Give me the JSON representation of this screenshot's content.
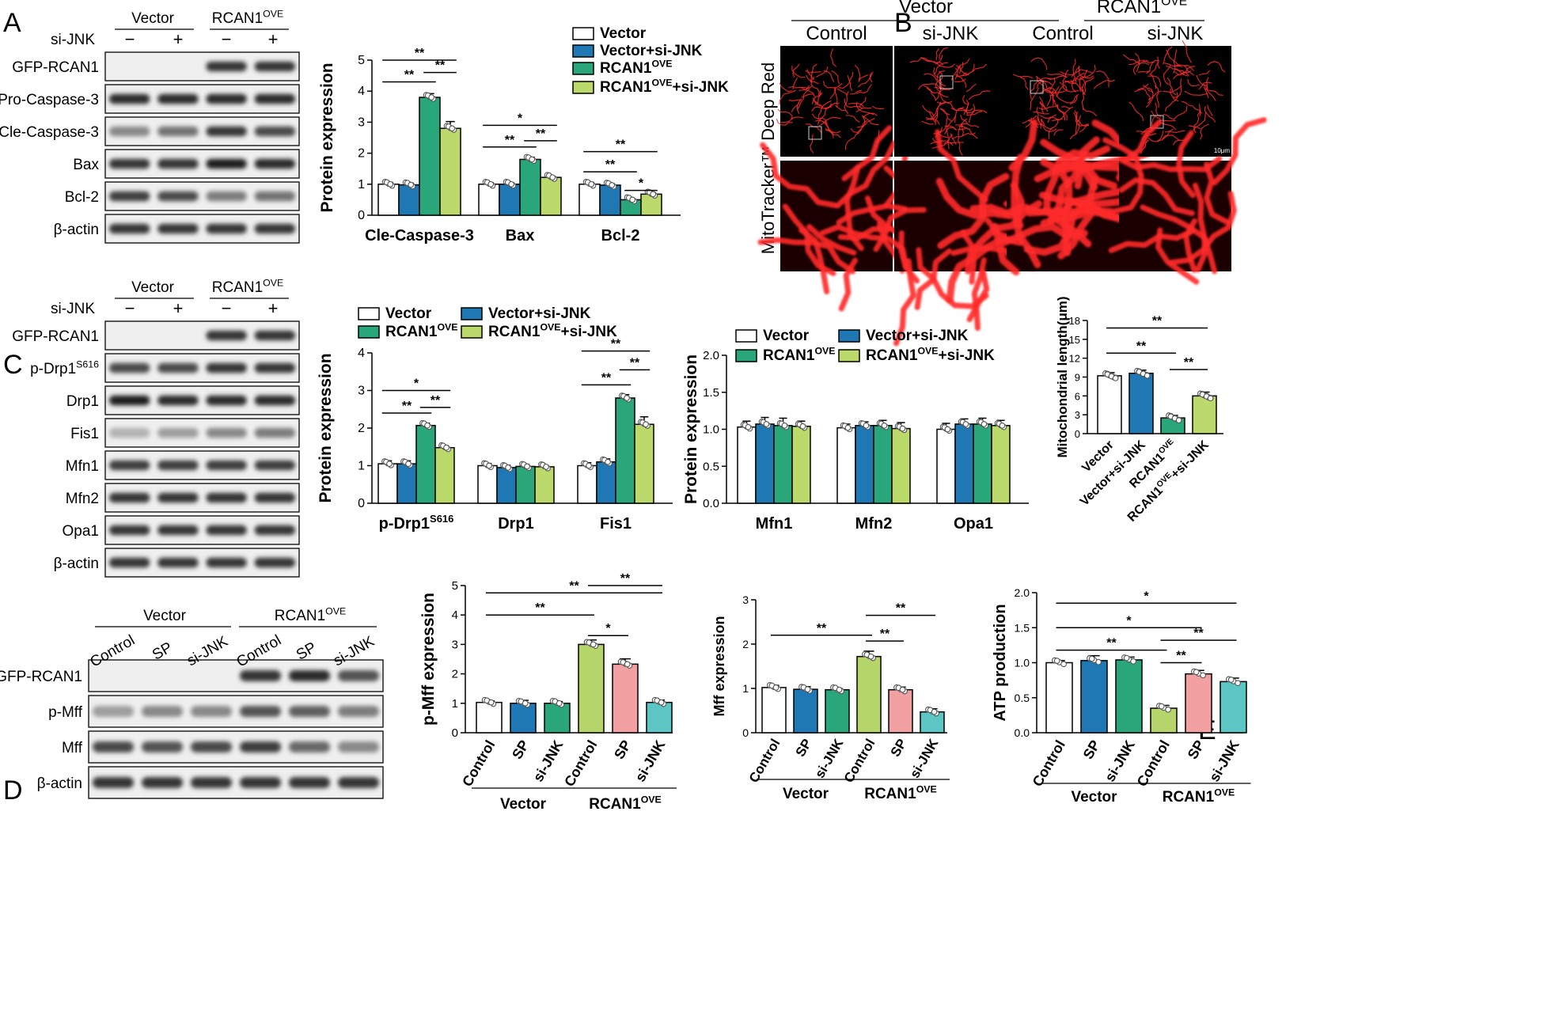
{
  "colors": {
    "vector": "#ffffff",
    "vector_sijnk": "#1f78b4",
    "rcan1": "#2aa77a",
    "rcan1_sijnk": "#bcd96b",
    "d_control_rcan": "#b5d46a",
    "d_sp_rcan": "#f2a0a2",
    "d_sijnk_rcan": "#5cc6c4",
    "d_sp_vec": "#1f78b4",
    "d_sijnk_vec": "#2aa77a"
  },
  "panels": {
    "A": "A",
    "B": "B",
    "C": "C",
    "D": "D",
    "E": "E"
  },
  "common": {
    "vector": "Vector",
    "rcan1_base": "RCAN1",
    "ove": "OVE",
    "sijnk": "si-JNK",
    "minus": "−",
    "plus": "+",
    "control": "Control",
    "sp": "SP",
    "sig2": "**",
    "sig1": "*"
  },
  "blotA": {
    "rows": [
      "GFP-RCAN1",
      "Pro-Caspase-3",
      "Cle-Caspase-3",
      "Bax",
      "Bcl-2",
      "β-actin"
    ]
  },
  "blotC": {
    "rows": [
      "GFP-RCAN1",
      "p-Drp1",
      "Drp1",
      "Fis1",
      "Mfn1",
      "Mfn2",
      "Opa1",
      "β-actin"
    ],
    "pdrp1_sup": "S616"
  },
  "blotD": {
    "rows": [
      "GFP-RCAN1",
      "p-Mff",
      "Mff",
      "β-actin"
    ]
  },
  "microscopy": {
    "ylabel": "MitoTracker™ Deep Red",
    "scale": "10μm"
  },
  "legend": {
    "vector": "Vector",
    "vector_sijnk": "Vector+si-JNK",
    "rcan1": "RCAN1",
    "rcan1_sijnk_suffix": "+si-JNK"
  },
  "chart_data": [
    {
      "id": "A",
      "type": "bar",
      "ylabel": "Protein expression",
      "ylim": [
        0,
        5
      ],
      "yticks": [
        0,
        1,
        2,
        3,
        4,
        5
      ],
      "categories": [
        "Cle-Caspase-3",
        "Bax",
        "Bcl-2"
      ],
      "series": [
        {
          "name": "Vector",
          "values": [
            1.0,
            1.0,
            1.0
          ],
          "errors": [
            0.06,
            0.05,
            0.06
          ]
        },
        {
          "name": "Vector+si-JNK",
          "values": [
            0.98,
            1.0,
            0.97
          ],
          "errors": [
            0.06,
            0.05,
            0.05
          ]
        },
        {
          "name": "RCAN1OVE",
          "values": [
            3.8,
            1.8,
            0.5
          ],
          "errors": [
            0.12,
            0.07,
            0.04
          ]
        },
        {
          "name": "RCAN1OVE+si-JNK",
          "values": [
            2.8,
            1.22,
            0.68
          ],
          "errors": [
            0.22,
            0.04,
            0.05
          ]
        }
      ],
      "significance": [
        {
          "group": 0,
          "from": 0,
          "to": 2,
          "label": "**",
          "y": 4.3
        },
        {
          "group": 0,
          "from": 2,
          "to": 3,
          "label": "**",
          "y": 4.6
        },
        {
          "group": 0,
          "from": 0,
          "to": 3,
          "label": "**",
          "y": 5.0
        },
        {
          "group": 1,
          "from": 0,
          "to": 2,
          "label": "**",
          "y": 2.2
        },
        {
          "group": 1,
          "from": 2,
          "to": 3,
          "label": "**",
          "y": 2.4
        },
        {
          "group": 1,
          "from": 0,
          "to": 3,
          "label": "*",
          "y": 2.9
        },
        {
          "group": 2,
          "from": 0,
          "to": 2,
          "label": "**",
          "y": 1.4
        },
        {
          "group": 2,
          "from": 2,
          "to": 3,
          "label": "*",
          "y": 0.8
        },
        {
          "group": 2,
          "from": 0,
          "to": 3,
          "label": "**",
          "y": 2.05
        }
      ]
    },
    {
      "id": "C1",
      "type": "bar",
      "ylabel": "Protein expression",
      "ylim": [
        0,
        4
      ],
      "yticks": [
        0,
        1,
        2,
        3,
        4
      ],
      "categories": [
        "p-Drp1S616",
        "Drp1",
        "Fis1"
      ],
      "series": [
        {
          "name": "Vector",
          "values": [
            1.05,
            1.0,
            1.0
          ],
          "errors": [
            0.08,
            0.06,
            0.08
          ]
        },
        {
          "name": "Vector+si-JNK",
          "values": [
            1.05,
            0.95,
            1.1
          ],
          "errors": [
            0.08,
            0.06,
            0.08
          ]
        },
        {
          "name": "RCAN1OVE",
          "values": [
            2.07,
            0.98,
            2.8
          ],
          "errors": [
            0.06,
            0.05,
            0.09
          ]
        },
        {
          "name": "RCAN1OVE+si-JNK",
          "values": [
            1.48,
            0.97,
            2.1
          ],
          "errors": [
            0.05,
            0.04,
            0.2
          ]
        }
      ],
      "significance": [
        {
          "group": 0,
          "from": 0,
          "to": 2,
          "label": "**",
          "y": 2.4
        },
        {
          "group": 0,
          "from": 2,
          "to": 3,
          "label": "**",
          "y": 2.55
        },
        {
          "group": 0,
          "from": 0,
          "to": 3,
          "label": "*",
          "y": 3.0
        },
        {
          "group": 2,
          "from": 0,
          "to": 2,
          "label": "**",
          "y": 3.15
        },
        {
          "group": 2,
          "from": 2,
          "to": 3,
          "label": "**",
          "y": 3.55
        },
        {
          "group": 2,
          "from": 0,
          "to": 3,
          "label": "**",
          "y": 4.05
        }
      ]
    },
    {
      "id": "C2",
      "type": "bar",
      "ylabel": "Protein expression",
      "ylim": [
        0,
        2.0
      ],
      "yticks": [
        0.0,
        0.5,
        1.0,
        1.5,
        2.0
      ],
      "categories": [
        "Mfn1",
        "Mfn2",
        "Opa1"
      ],
      "series": [
        {
          "name": "Vector",
          "values": [
            1.03,
            1.02,
            1.0
          ],
          "errors": [
            0.08,
            0.05,
            0.08
          ]
        },
        {
          "name": "Vector+si-JNK",
          "values": [
            1.07,
            1.05,
            1.07
          ],
          "errors": [
            0.09,
            0.05,
            0.07
          ]
        },
        {
          "name": "RCAN1OVE",
          "values": [
            1.05,
            1.05,
            1.07
          ],
          "errors": [
            0.1,
            0.07,
            0.08
          ]
        },
        {
          "name": "RCAN1OVE+si-JNK",
          "values": [
            1.04,
            1.01,
            1.05
          ],
          "errors": [
            0.07,
            0.08,
            0.07
          ]
        }
      ]
    },
    {
      "id": "C3",
      "type": "bar",
      "ylabel": "Mitochondrial length(μm)",
      "ylim": [
        0,
        18
      ],
      "yticks": [
        0,
        3,
        6,
        9,
        12,
        15,
        18
      ],
      "categories": [
        "Vector",
        "Vector+si-JNK",
        "RCAN1OVE",
        "RCAN1OVE+si-JNK"
      ],
      "values": [
        9.2,
        9.6,
        2.5,
        6.0
      ],
      "errors": [
        0.5,
        0.5,
        0.4,
        0.6
      ],
      "significance": [
        {
          "from": 0,
          "to": 2,
          "label": "**",
          "y": 12.8
        },
        {
          "from": 2,
          "to": 3,
          "label": "**",
          "y": 10.2
        },
        {
          "from": 0,
          "to": 3,
          "label": "**",
          "y": 16.8
        }
      ]
    },
    {
      "id": "D1",
      "type": "bar",
      "ylabel": "p-Mff expression",
      "ylim": [
        0,
        5
      ],
      "yticks": [
        0,
        1,
        2,
        3,
        4,
        5
      ],
      "categories": [
        "Control",
        "SP",
        "si-JNK",
        "Control",
        "SP",
        "si-JNK"
      ],
      "groups": [
        "Vector",
        "RCAN1OVE"
      ],
      "values": [
        1.03,
        1.0,
        1.0,
        3.0,
        2.33,
        1.03
      ],
      "errors": [
        0.05,
        0.1,
        0.06,
        0.15,
        0.18,
        0.08
      ],
      "significance": [
        {
          "from": 0,
          "to": 3,
          "label": "**",
          "y": 4.0
        },
        {
          "from": 3,
          "to": 4,
          "label": "*",
          "y": 3.3
        },
        {
          "from": 0,
          "to": 5,
          "label": "**",
          "y": 4.75
        },
        {
          "from": 3,
          "to": 5,
          "label": "**",
          "y": 5.0
        }
      ]
    },
    {
      "id": "D2",
      "type": "bar",
      "ylabel": "Mff expression",
      "ylim": [
        0,
        3
      ],
      "yticks": [
        0,
        1,
        2,
        3
      ],
      "categories": [
        "Control",
        "SP",
        "si-JNK",
        "Control",
        "SP",
        "si-JNK"
      ],
      "groups": [
        "Vector",
        "RCAN1OVE"
      ],
      "values": [
        1.02,
        0.98,
        0.97,
        1.72,
        0.97,
        0.47
      ],
      "errors": [
        0.05,
        0.06,
        0.03,
        0.12,
        0.06,
        0.07
      ],
      "significance": [
        {
          "from": 0,
          "to": 3,
          "label": "**",
          "y": 2.2
        },
        {
          "from": 3,
          "to": 4,
          "label": "**",
          "y": 2.07
        },
        {
          "from": 3,
          "to": 5,
          "label": "**",
          "y": 2.65
        }
      ]
    },
    {
      "id": "E",
      "type": "bar",
      "ylabel": "ATP production",
      "ylim": [
        0,
        2.0
      ],
      "yticks": [
        0.0,
        0.5,
        1.0,
        1.5,
        2.0
      ],
      "categories": [
        "Control",
        "SP",
        "si-JNK",
        "Control",
        "SP",
        "si-JNK"
      ],
      "groups": [
        "Vector",
        "RCAN1OVE"
      ],
      "values": [
        1.0,
        1.03,
        1.04,
        0.35,
        0.84,
        0.73
      ],
      "errors": [
        0.03,
        0.07,
        0.04,
        0.04,
        0.05,
        0.05
      ],
      "significance": [
        {
          "from": 0,
          "to": 3,
          "label": "**",
          "y": 1.18
        },
        {
          "from": 3,
          "to": 4,
          "label": "**",
          "y": 1.0
        },
        {
          "from": 0,
          "to": 4,
          "label": "*",
          "y": 1.5
        },
        {
          "from": 0,
          "to": 5,
          "label": "*",
          "y": 1.85
        },
        {
          "from": 3,
          "to": 5,
          "label": "**",
          "y": 1.32
        }
      ]
    }
  ]
}
